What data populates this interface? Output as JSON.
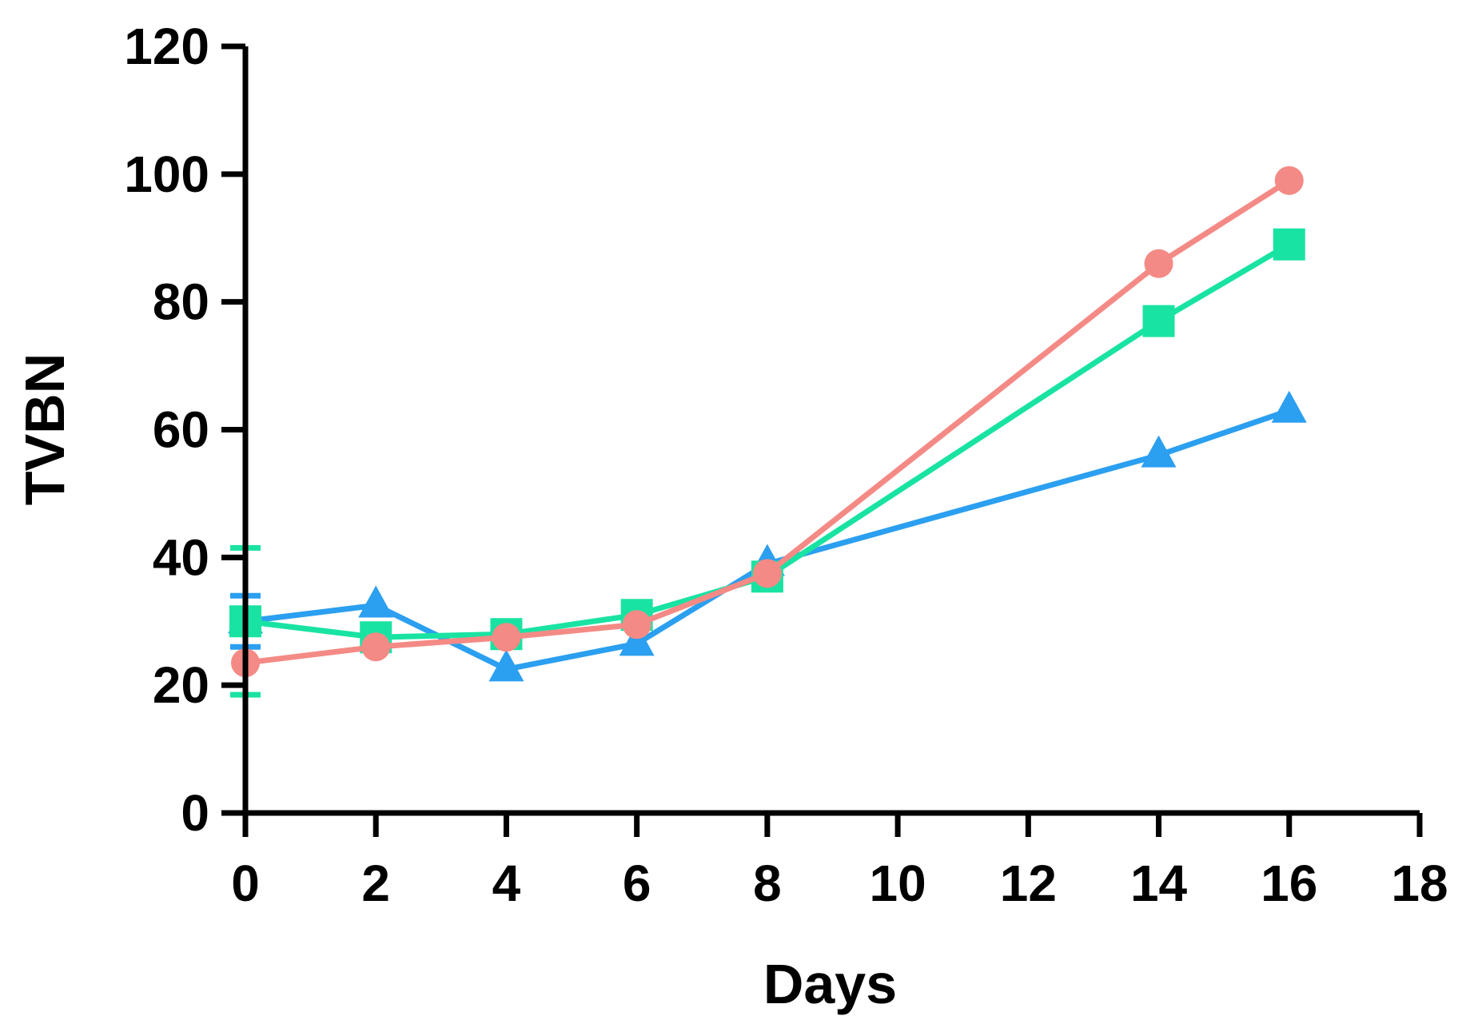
{
  "chart_data": {
    "type": "line",
    "title": "",
    "xlabel": "Days",
    "ylabel": "TVBN",
    "xlim": [
      0,
      18
    ],
    "ylim": [
      0,
      120
    ],
    "xticks": [
      0,
      2,
      4,
      6,
      8,
      10,
      12,
      14,
      16,
      18
    ],
    "yticks": [
      0,
      20,
      40,
      60,
      80,
      100,
      120
    ],
    "x": [
      0,
      2,
      4,
      6,
      8,
      14,
      16
    ],
    "grid": false,
    "legend": "none",
    "series": [
      {
        "color": "#2b9ff0",
        "marker": "triangle",
        "values": [
          30,
          32.5,
          22.5,
          26.5,
          39,
          56,
          63
        ],
        "error": [
          4,
          0,
          0,
          0,
          0,
          0,
          0
        ]
      },
      {
        "color": "#19e3a2",
        "marker": "square",
        "values": [
          30,
          27.5,
          28,
          31,
          37,
          77,
          89
        ],
        "error": [
          11.5,
          0,
          0,
          0,
          0,
          0,
          0
        ]
      },
      {
        "color": "#f48a85",
        "marker": "circle",
        "values": [
          23.5,
          26,
          27.5,
          29.5,
          37.5,
          86,
          99
        ],
        "error": [
          0,
          0,
          0,
          0,
          0,
          0,
          0
        ]
      }
    ]
  }
}
